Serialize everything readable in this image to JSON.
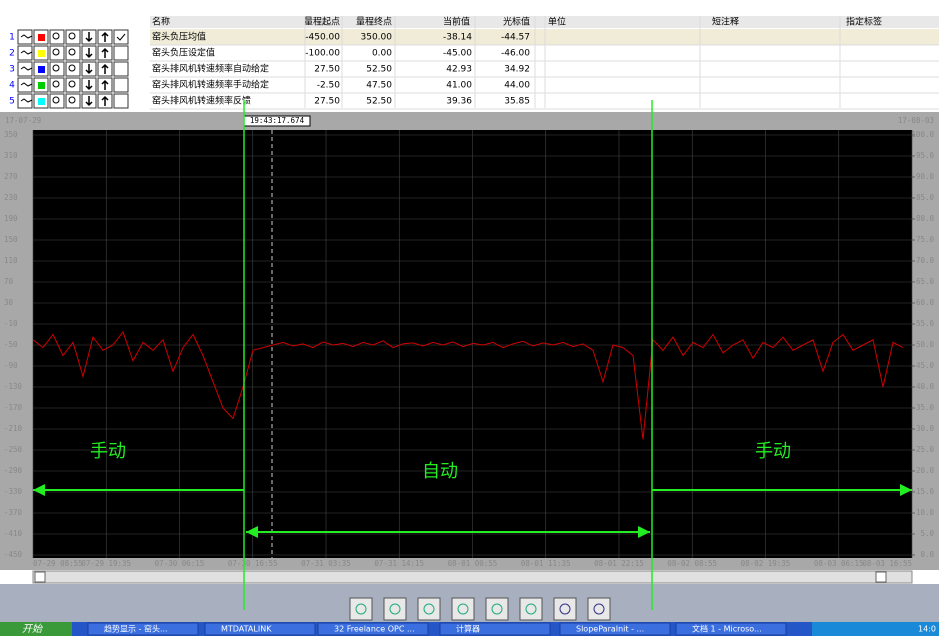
{
  "table": {
    "headers": [
      "名称",
      "量程起点",
      "量程终点",
      "当前值",
      "光标值",
      "单位",
      "短注释",
      "指定标签"
    ],
    "rows": [
      [
        "1",
        "窑头负压均值",
        "-450.00",
        "350.00",
        "-38.14",
        "-44.57"
      ],
      [
        "2",
        "窑头负压设定值",
        "-100.00",
        "0.00",
        "-45.00",
        "-46.00"
      ],
      [
        "3",
        "窑头排风机转速频率自动给定",
        "27.50",
        "52.50",
        "42.93",
        "34.92"
      ],
      [
        "4",
        "窑头排风机转速频率手动给定",
        "-2.50",
        "47.50",
        "41.00",
        "44.00"
      ],
      [
        "5",
        "窑头排风机转速频率反馈",
        "27.50",
        "52.50",
        "39.36",
        "35.85"
      ]
    ],
    "colors": [
      "#ff0000",
      "#ffff00",
      "#0000ff",
      "#00cc00",
      "#00ffff"
    ]
  },
  "trend": {
    "start_date": "17-07-29",
    "end_date": "17-08-03",
    "cursor_time": "19:43:17.674",
    "ylim": [
      -450,
      350
    ],
    "yticks": [
      350,
      310,
      270,
      230,
      190,
      150,
      110,
      70,
      30,
      -10,
      -50,
      -90,
      -130,
      -170,
      -210,
      -250,
      -290,
      -330,
      -370,
      -410,
      -450
    ],
    "y2lim": [
      0,
      100
    ],
    "y2ticks": [
      {
        "value": 100,
        "label": "100.0"
      },
      {
        "value": 95,
        "label": "95.0"
      },
      {
        "value": 90,
        "label": "90.0"
      },
      {
        "value": 85,
        "label": "85.0"
      },
      {
        "value": 80,
        "label": "80.0"
      },
      {
        "value": 75,
        "label": "75.0"
      },
      {
        "value": 70,
        "label": "70.0"
      },
      {
        "value": 65,
        "label": "65.0"
      },
      {
        "value": 60,
        "label": "60.0"
      },
      {
        "value": 55,
        "label": "55.0"
      },
      {
        "value": 50,
        "label": "50.0"
      },
      {
        "value": 45,
        "label": "45.0"
      },
      {
        "value": 40,
        "label": "40.0"
      },
      {
        "value": 35,
        "label": "35.0"
      },
      {
        "value": 30,
        "label": "30.0"
      },
      {
        "value": 25,
        "label": "25.0"
      },
      {
        "value": 20,
        "label": "20.0"
      },
      {
        "value": 15,
        "label": "15.0"
      },
      {
        "value": 10,
        "label": "10.0"
      },
      {
        "value": 5,
        "label": "5.0"
      },
      {
        "value": 0,
        "label": "0.0"
      }
    ],
    "xticks": [
      "07-29 08:55",
      "07-29 19:35",
      "07-30 06:15",
      "07-30 16:55",
      "07-31 03:35",
      "07-31 14:15",
      "08-01 00:55",
      "08-01 11:35",
      "08-01 22:15",
      "08-02 08:55",
      "08-02 19:35",
      "08-03 06:15",
      "08-03 16:55"
    ],
    "series": [
      {
        "color": "#d00000",
        "values": [
          -40,
          -55,
          -30,
          -70,
          -45,
          -110,
          -35,
          -60,
          -50,
          -25,
          -80,
          -45,
          -60,
          -40,
          -100,
          -55,
          -30,
          -70,
          -120,
          -170,
          -190,
          -130,
          -60,
          -55,
          -50,
          -45,
          -52,
          -48,
          -55,
          -44,
          -50,
          -47,
          -53,
          -45,
          -50,
          -42,
          -55,
          -48,
          -46,
          -52,
          -45,
          -50,
          -44,
          -53,
          -47,
          -50,
          -45,
          -55,
          -48,
          -43,
          -52,
          -46,
          -50,
          -45,
          -53,
          -48,
          -60,
          -120,
          -50,
          -55,
          -70,
          -230,
          -40,
          -60,
          -35,
          -70,
          -45,
          -55,
          -30,
          -65,
          -50,
          -40,
          -75,
          -45,
          -55,
          -35,
          -60,
          -50,
          -40,
          -100,
          -45,
          -30,
          -60,
          -50,
          -40,
          -130,
          -45,
          -55
        ]
      }
    ]
  },
  "annotations": {
    "manual": "手动",
    "auto": "自动"
  },
  "taskbar": {
    "start": "开始",
    "items": [
      "趋势显示 - 窑头...",
      "MTDATALINK",
      "32 Freelance OPC ...",
      "计算器",
      "SlopeParaInit - ...",
      "文档 1 - Microso..."
    ],
    "clock": "14:0"
  }
}
